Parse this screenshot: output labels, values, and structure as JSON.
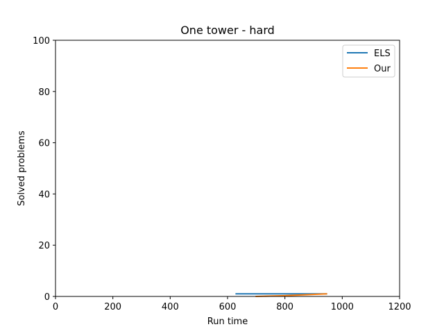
{
  "chart_data": {
    "type": "line",
    "title": "One tower - hard",
    "xlabel": "Run time",
    "ylabel": "Solved problems",
    "xlim": [
      0,
      1200
    ],
    "ylim": [
      0,
      100
    ],
    "xticks": [
      0,
      200,
      400,
      600,
      800,
      1000,
      1200
    ],
    "yticks": [
      0,
      20,
      40,
      60,
      80,
      100
    ],
    "grid": false,
    "legend": "top-right",
    "series": [
      {
        "name": "ELS",
        "color": "#1f77b4",
        "x": [
          630,
          945
        ],
        "y": [
          1,
          1
        ]
      },
      {
        "name": "Our",
        "color": "#ff7f0e",
        "x": [
          700,
          800,
          945
        ],
        "y": [
          0,
          0.3,
          1
        ]
      }
    ]
  }
}
